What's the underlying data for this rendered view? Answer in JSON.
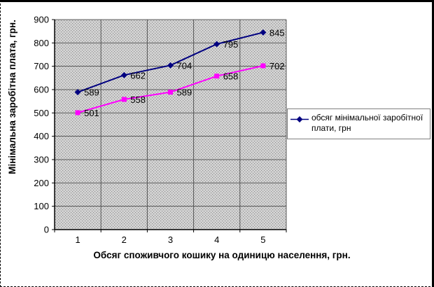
{
  "chart_data": {
    "type": "line",
    "title": "",
    "xlabel": "Обсяг споживчого кошику на одиницю населення, грн.",
    "ylabel": "Мінімальна заробітна плата, грн.",
    "categories": [
      "1",
      "2",
      "3",
      "4",
      "5"
    ],
    "ylim": [
      0,
      900
    ],
    "ytick_step": 100,
    "yticks": [
      0,
      100,
      200,
      300,
      400,
      500,
      600,
      700,
      800,
      900
    ],
    "grid": true,
    "legend_position": "right",
    "series": [
      {
        "name": "обсяг мінімальної заробітної плати, грн",
        "values": [
          589,
          662,
          704,
          795,
          845
        ],
        "color": "#000080",
        "marker": "diamond",
        "show_in_legend": true,
        "data_labels": true
      },
      {
        "name": "",
        "values": [
          501,
          558,
          589,
          658,
          702
        ],
        "color": "#ff00ff",
        "marker": "square",
        "show_in_legend": false,
        "data_labels": true
      }
    ],
    "colors": {
      "plot_fill": "#d4d4d4",
      "plot_dot": "#8e8e8e",
      "gridline": "#595959",
      "axis": "#000000",
      "label_text": "#000000",
      "legend_border": "#808080"
    }
  }
}
